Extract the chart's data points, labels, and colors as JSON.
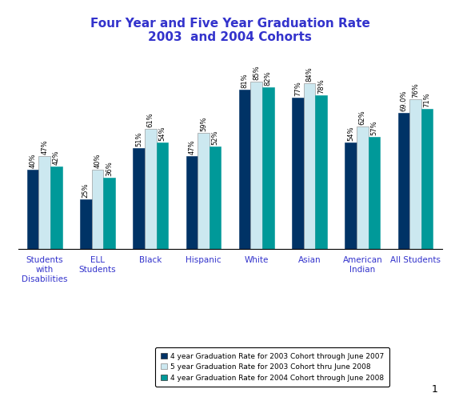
{
  "title": "Four Year and Five Year Graduation Rate\n2003  and 2004 Cohorts",
  "categories": [
    "Students\nwith\nDisabilities",
    "ELL\nStudents",
    "Black",
    "Hispanic",
    "White",
    "Asian",
    "American\nIndian",
    "All Students"
  ],
  "series": {
    "4yr_2003": [
      40,
      25,
      51,
      47,
      81,
      77,
      54,
      69
    ],
    "5yr_2003": [
      47,
      40,
      61,
      59,
      85,
      84,
      62,
      76
    ],
    "4yr_2004": [
      42,
      36,
      54,
      52,
      82,
      78,
      57,
      71
    ]
  },
  "labels": {
    "4yr_2003": [
      "40%",
      "25%",
      "51%",
      "47%",
      "81%",
      "77%",
      "54%",
      "69.0%"
    ],
    "5yr_2003": [
      "47%",
      "40%",
      "61%",
      "59%",
      "85%",
      "84%",
      "62%",
      "76%"
    ],
    "4yr_2004": [
      "42%",
      "36%",
      "54%",
      "52%",
      "82%",
      "78%",
      "57%",
      "71%"
    ]
  },
  "colors": {
    "4yr_2003": "#003366",
    "5yr_2003": "#cce8f0",
    "4yr_2004": "#009999"
  },
  "legend_labels": [
    "4 year Graduation Rate for 2003 Cohort through June 2007",
    "5 year Graduation Rate for 2003 Cohort thru June 2008",
    "4 year Graduation Rate for 2004 Cohort through June 2008"
  ],
  "ylim": [
    0,
    100
  ],
  "title_color": "#3333cc",
  "axis_label_color": "#3333cc",
  "background_color": "#ffffff",
  "title_fontsize": 11,
  "label_fontsize": 6,
  "tick_fontsize": 7.5,
  "legend_fontsize": 6.5
}
